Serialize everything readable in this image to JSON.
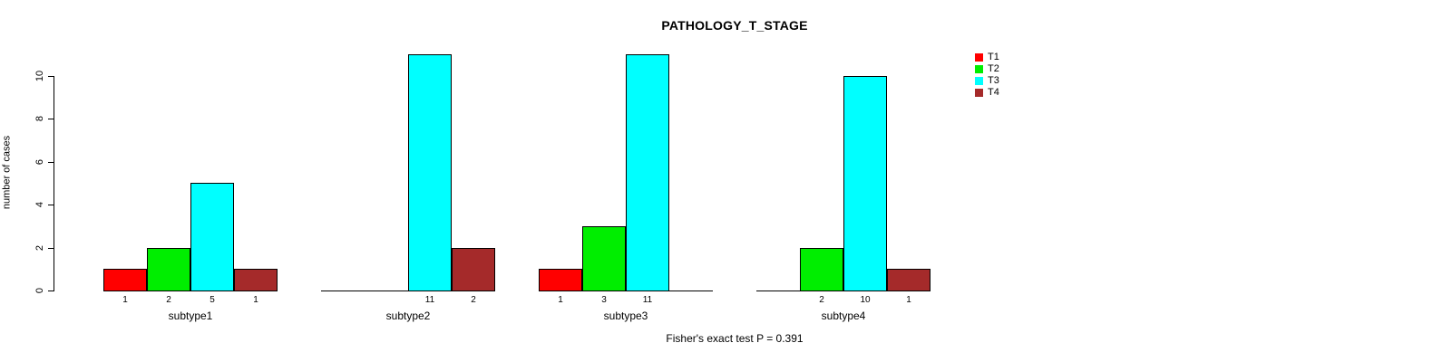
{
  "chart_data": {
    "type": "bar",
    "title": "PATHOLOGY_T_STAGE",
    "ylabel": "number of cases",
    "xlabel": "",
    "categories": [
      "subtype1",
      "subtype2",
      "subtype3",
      "subtype4"
    ],
    "series": [
      {
        "name": "T1",
        "color": "#ff0000",
        "values": [
          1,
          0,
          1,
          0
        ]
      },
      {
        "name": "T2",
        "color": "#00ee00",
        "values": [
          2,
          0,
          3,
          2
        ]
      },
      {
        "name": "T3",
        "color": "#00ffff",
        "values": [
          5,
          11,
          11,
          10
        ]
      },
      {
        "name": "T4",
        "color": "#a52a2a",
        "values": [
          1,
          2,
          0,
          1
        ]
      }
    ],
    "yticks": [
      0,
      2,
      4,
      6,
      8,
      10
    ],
    "ylim": [
      0,
      10
    ],
    "grid": false,
    "legend_position": "right",
    "bar_value_labels": "shown under each nonzero bar",
    "caption": "Fisher's exact test P = 0.391"
  }
}
